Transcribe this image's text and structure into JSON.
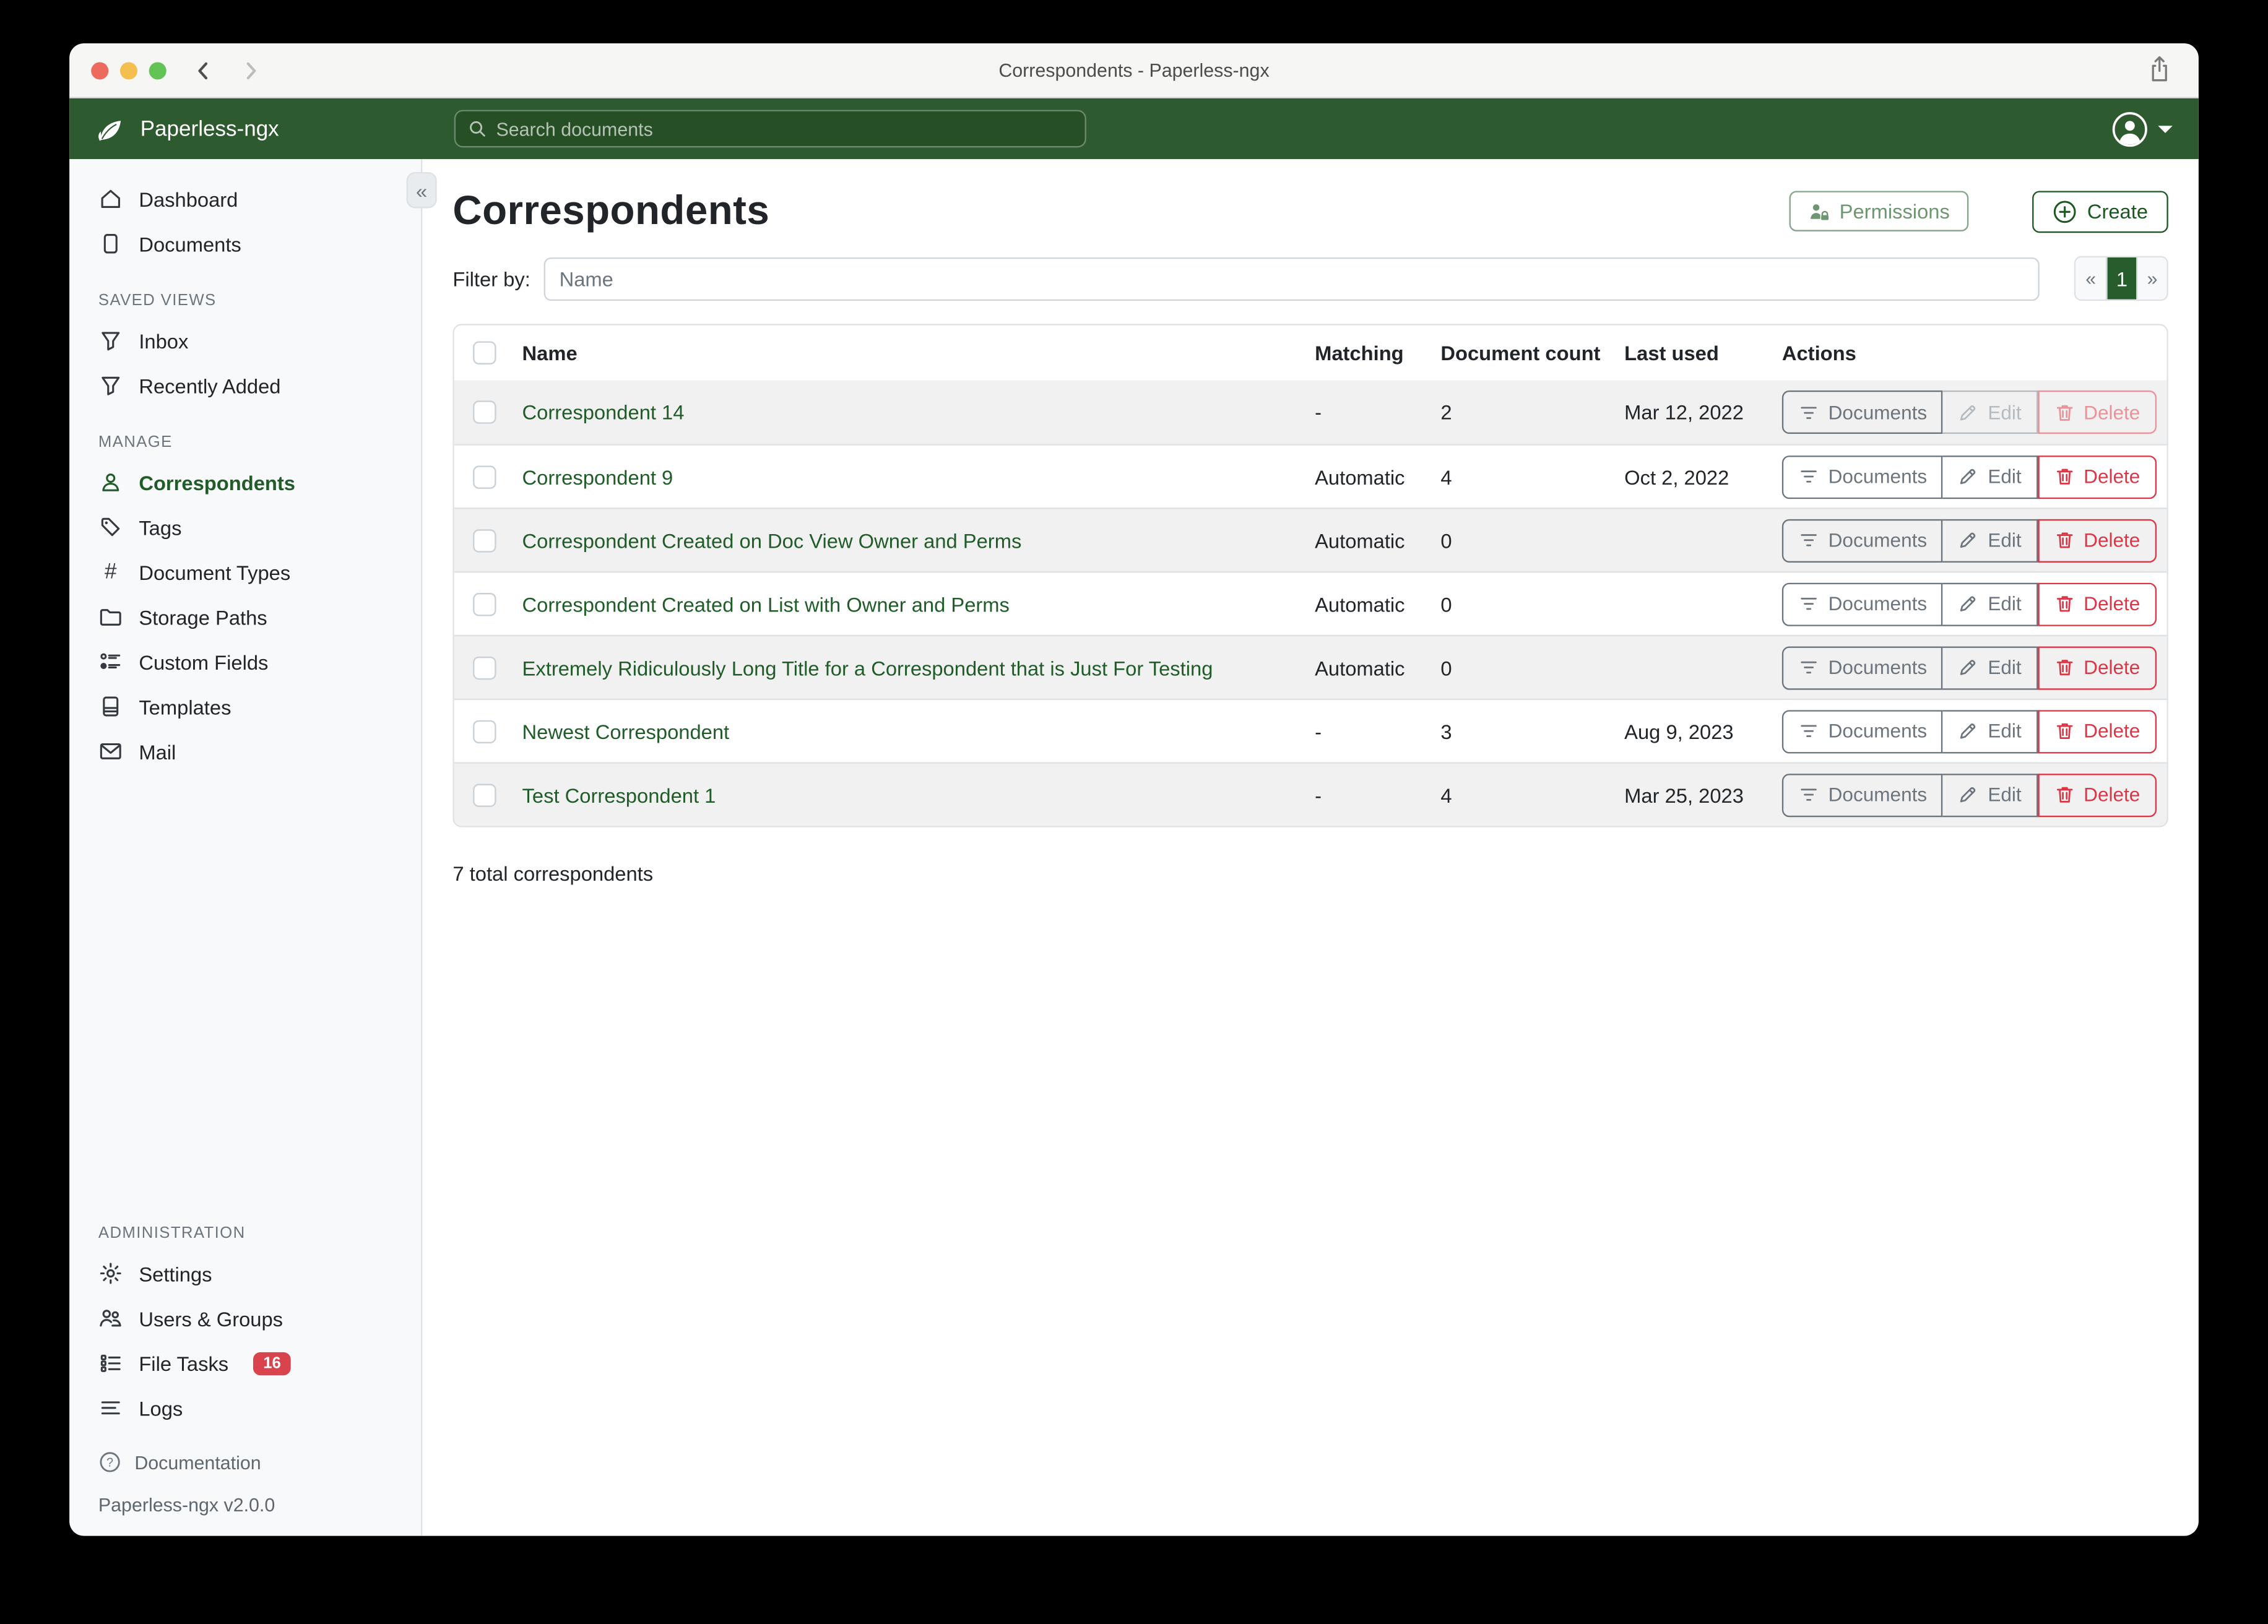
{
  "window": {
    "title": "Correspondents - Paperless-ngx"
  },
  "navbar": {
    "brand": "Paperless-ngx",
    "search_placeholder": "Search documents"
  },
  "sidebar": {
    "primary": [
      {
        "label": "Dashboard",
        "icon": "home-icon",
        "active": false
      },
      {
        "label": "Documents",
        "icon": "documents-icon",
        "active": false
      }
    ],
    "sections": [
      {
        "heading": "SAVED VIEWS",
        "items": [
          {
            "label": "Inbox",
            "icon": "filter-icon",
            "active": false
          },
          {
            "label": "Recently Added",
            "icon": "filter-icon",
            "active": false
          }
        ]
      },
      {
        "heading": "MANAGE",
        "items": [
          {
            "label": "Correspondents",
            "icon": "person-icon",
            "active": true
          },
          {
            "label": "Tags",
            "icon": "tag-icon",
            "active": false
          },
          {
            "label": "Document Types",
            "icon": "hash-icon",
            "active": false
          },
          {
            "label": "Storage Paths",
            "icon": "folder-icon",
            "active": false
          },
          {
            "label": "Custom Fields",
            "icon": "custom-fields-icon",
            "active": false
          },
          {
            "label": "Templates",
            "icon": "template-icon",
            "active": false
          },
          {
            "label": "Mail",
            "icon": "mail-icon",
            "active": false
          }
        ]
      },
      {
        "heading": "ADMINISTRATION",
        "items": [
          {
            "label": "Settings",
            "icon": "gear-icon",
            "active": false
          },
          {
            "label": "Users & Groups",
            "icon": "users-groups-icon",
            "active": false
          },
          {
            "label": "File Tasks",
            "icon": "file-tasks-icon",
            "active": false,
            "badge": "16"
          },
          {
            "label": "Logs",
            "icon": "logs-icon",
            "active": false
          }
        ]
      }
    ],
    "footer": {
      "documentation": "Documentation",
      "version": "Paperless-ngx v2.0.0"
    }
  },
  "page": {
    "title": "Correspondents",
    "permissions_label": "Permissions",
    "create_label": "Create",
    "filter_label": "Filter by:",
    "filter_placeholder": "Name",
    "pagination": {
      "prev": "«",
      "current": "1",
      "next": "»"
    },
    "total": "7 total correspondents"
  },
  "table": {
    "headers": [
      "Name",
      "Matching",
      "Document count",
      "Last used",
      "Actions"
    ],
    "action_labels": {
      "documents": "Documents",
      "edit": "Edit",
      "delete": "Delete"
    },
    "rows": [
      {
        "name": "Correspondent 14",
        "matching": "-",
        "count": "2",
        "last_used": "Mar 12, 2022",
        "edit_enabled": false,
        "delete_enabled": false
      },
      {
        "name": "Correspondent 9",
        "matching": "Automatic",
        "count": "4",
        "last_used": "Oct 2, 2022",
        "edit_enabled": true,
        "delete_enabled": true
      },
      {
        "name": "Correspondent Created on Doc View Owner and Perms",
        "matching": "Automatic",
        "count": "0",
        "last_used": "",
        "edit_enabled": true,
        "delete_enabled": true
      },
      {
        "name": "Correspondent Created on List with Owner and Perms",
        "matching": "Automatic",
        "count": "0",
        "last_used": "",
        "edit_enabled": true,
        "delete_enabled": true
      },
      {
        "name": "Extremely Ridiculously Long Title for a Correspondent that is Just For Testing",
        "matching": "Automatic",
        "count": "0",
        "last_used": "",
        "edit_enabled": true,
        "delete_enabled": true
      },
      {
        "name": "Newest Correspondent",
        "matching": "-",
        "count": "3",
        "last_used": "Aug 9, 2023",
        "edit_enabled": true,
        "delete_enabled": true
      },
      {
        "name": "Test Correspondent 1",
        "matching": "-",
        "count": "4",
        "last_used": "Mar 25, 2023",
        "edit_enabled": true,
        "delete_enabled": true
      }
    ]
  }
}
